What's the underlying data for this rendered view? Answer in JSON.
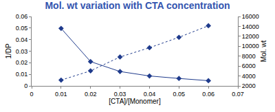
{
  "chart_data": {
    "type": "line",
    "title": "Mol. wt variation with CTA concentration",
    "x_label": "[CTA]/[Monomer]",
    "y_label": "1/DP",
    "y2_label": "Mol. wt",
    "x": [
      0.01,
      0.02,
      0.03,
      0.04,
      0.05,
      0.06
    ],
    "xlim": [
      0,
      0.07
    ],
    "xticks": [
      0,
      0.01,
      0.02,
      0.03,
      0.04,
      0.05,
      0.06,
      0.07
    ],
    "ylim": [
      0,
      0.06
    ],
    "yticks": [
      0,
      0.01,
      0.02,
      0.03,
      0.04,
      0.05,
      0.06
    ],
    "y2lim": [
      2000,
      16000
    ],
    "y2ticks": [
      2000,
      4000,
      6000,
      8000,
      10000,
      12000,
      14000,
      16000
    ],
    "grid": false,
    "series": [
      {
        "color": "#1f3b8c",
        "marker": "diamond",
        "line_style": "dotted",
        "values": [
          0.005,
          0.013,
          0.025,
          0.033,
          0.042,
          0.052
        ]
      },
      {
        "color": "#1f3b8c",
        "marker": "diamond",
        "line_style": "solid",
        "axis": "y2",
        "values": [
          13600,
          6900,
          4900,
          4000,
          3500,
          3050
        ]
      }
    ]
  }
}
